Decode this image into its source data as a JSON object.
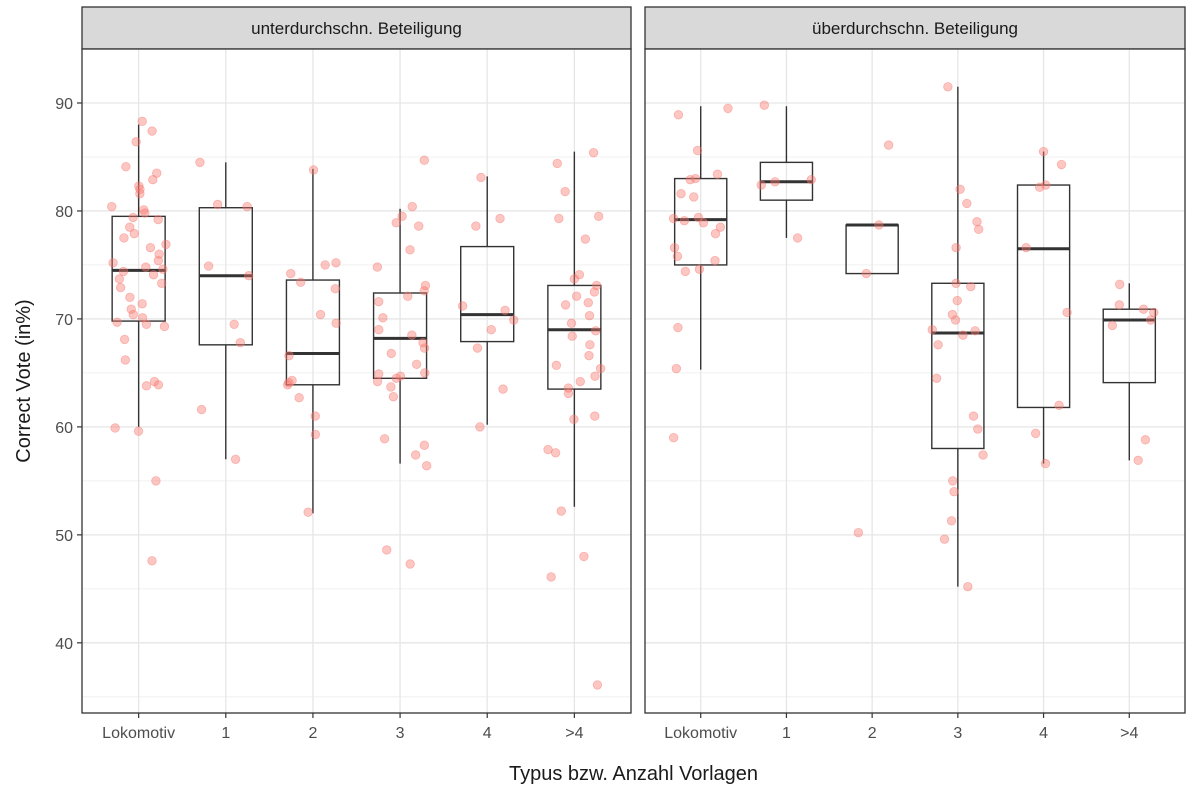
{
  "chart_data": {
    "type": "boxplot",
    "ylabel": "Correct Vote (in%)",
    "xlabel": "Typus bzw. Anzahl Vorlagen",
    "ylim": [
      33.5,
      95
    ],
    "yticks": [
      40,
      50,
      60,
      70,
      80,
      90
    ],
    "categories": [
      "Lokomotiv",
      "1",
      "2",
      "3",
      "4",
      ">4"
    ],
    "grid": true,
    "point_color": "#F8766D",
    "box_color": "#333333",
    "strip_fill": "#D9D9D9",
    "panels": [
      {
        "title": "unterdurchschn. Beteiligung",
        "boxes": [
          {
            "category": "Lokomotiv",
            "min": 60.0,
            "q1": 69.8,
            "median": 74.5,
            "q3": 79.5,
            "max": 88.0
          },
          {
            "category": "1",
            "min": 57.0,
            "q1": 67.6,
            "median": 74.0,
            "q3": 80.3,
            "max": 84.5
          },
          {
            "category": "2",
            "min": 52.0,
            "q1": 63.9,
            "median": 66.8,
            "q3": 73.6,
            "max": 83.9
          },
          {
            "category": "3",
            "min": 56.6,
            "q1": 64.5,
            "median": 68.2,
            "q3": 72.4,
            "max": 80.2
          },
          {
            "category": "4",
            "min": 60.2,
            "q1": 67.9,
            "median": 70.4,
            "q3": 76.7,
            "max": 83.2
          },
          {
            "category": ">4",
            "min": 52.6,
            "q1": 63.5,
            "median": 69.0,
            "q3": 73.1,
            "max": 85.5
          }
        ],
        "points": {
          "Lokomotiv": [
            87.4,
            88.3,
            86.4,
            84.1,
            83.5,
            82.9,
            82.3,
            82.0,
            81.6,
            80.4,
            80.1,
            79.8,
            79.4,
            79.2,
            78.5,
            77.9,
            77.5,
            76.9,
            76.6,
            76.0,
            75.4,
            75.2,
            74.8,
            74.6,
            74.4,
            74.1,
            73.7,
            73.3,
            72.9,
            72.0,
            71.4,
            70.9,
            70.4,
            70.1,
            69.7,
            69.5,
            69.3,
            68.1,
            66.2,
            64.2,
            63.9,
            63.8,
            59.9,
            59.6,
            55.0,
            47.6
          ],
          "1": [
            84.5,
            80.6,
            80.4,
            74.9,
            74.0,
            69.5,
            67.8,
            61.6,
            57.0
          ],
          "2": [
            83.8,
            75.2,
            75.0,
            74.2,
            73.4,
            72.8,
            70.4,
            69.6,
            66.6,
            64.3,
            64.1,
            63.9,
            62.7,
            61.0,
            59.3,
            52.1
          ],
          "3": [
            84.7,
            80.4,
            79.5,
            78.9,
            78.6,
            76.4,
            74.8,
            73.1,
            72.6,
            72.1,
            71.6,
            70.1,
            69.0,
            68.5,
            67.8,
            67.3,
            66.8,
            65.8,
            65.0,
            64.9,
            64.7,
            64.5,
            64.2,
            63.7,
            62.8,
            58.9,
            58.3,
            57.4,
            56.4,
            48.6,
            47.3
          ],
          "4": [
            83.1,
            79.3,
            78.6,
            71.2,
            70.8,
            69.9,
            69.0,
            67.3,
            63.5,
            60.0
          ],
          ">4": [
            85.4,
            84.4,
            81.8,
            79.5,
            79.3,
            77.4,
            74.1,
            73.7,
            73.1,
            72.5,
            72.1,
            71.5,
            71.3,
            70.3,
            69.6,
            68.9,
            68.4,
            67.6,
            66.6,
            65.7,
            65.4,
            64.7,
            64.2,
            63.6,
            63.1,
            61.0,
            60.7,
            57.9,
            57.6,
            52.2,
            48.0,
            46.1,
            36.1
          ]
        }
      },
      {
        "title": "überdurchschn. Beteiligung",
        "boxes": [
          {
            "category": "Lokomotiv",
            "min": 65.3,
            "q1": 75.0,
            "median": 79.2,
            "q3": 83.0,
            "max": 89.7
          },
          {
            "category": "1",
            "min": 77.5,
            "q1": 81.0,
            "median": 82.7,
            "q3": 84.5,
            "max": 89.7
          },
          {
            "category": "2",
            "min": 74.2,
            "q1": 74.2,
            "median": 78.7,
            "q3": 78.7,
            "max": 78.7
          },
          {
            "category": "3",
            "min": 45.2,
            "q1": 58.0,
            "median": 68.7,
            "q3": 73.3,
            "max": 91.5
          },
          {
            "category": "4",
            "min": 56.6,
            "q1": 61.8,
            "median": 76.5,
            "q3": 82.4,
            "max": 85.5
          },
          {
            "category": ">4",
            "min": 56.9,
            "q1": 64.1,
            "median": 69.9,
            "q3": 70.9,
            "max": 73.3
          }
        ],
        "points": {
          "Lokomotiv": [
            89.5,
            88.9,
            85.6,
            83.4,
            83.0,
            82.9,
            81.6,
            81.3,
            79.4,
            79.3,
            79.1,
            78.9,
            78.5,
            77.9,
            76.6,
            75.8,
            75.4,
            74.6,
            74.4,
            69.2,
            65.4,
            59.0
          ],
          "1": [
            89.8,
            82.9,
            82.7,
            82.4,
            77.5
          ],
          "2": [
            86.1,
            78.7,
            74.2,
            50.2
          ],
          "3": [
            91.5,
            82.0,
            80.7,
            79.0,
            78.3,
            76.6,
            73.3,
            73.0,
            71.7,
            70.4,
            69.9,
            69.0,
            68.9,
            68.5,
            67.6,
            64.5,
            61.0,
            59.8,
            57.4,
            55.0,
            54.0,
            51.3,
            49.6,
            45.2
          ],
          "4": [
            85.5,
            84.3,
            82.4,
            82.2,
            76.6,
            70.6,
            62.0,
            59.4,
            56.6
          ],
          ">4": [
            73.2,
            71.3,
            70.9,
            70.6,
            69.9,
            69.4,
            58.8,
            56.9
          ]
        }
      }
    ]
  }
}
